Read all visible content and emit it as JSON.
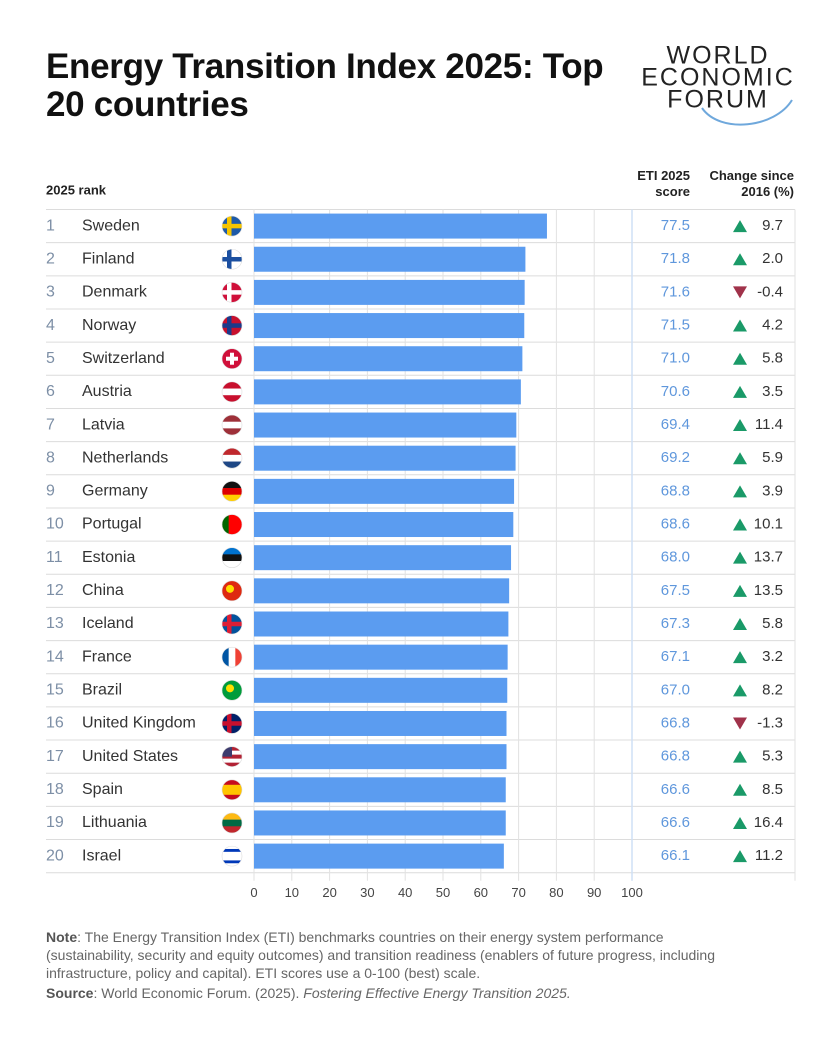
{
  "chart_data": {
    "type": "bar",
    "orientation": "horizontal",
    "title": "Energy Transition Index 2025: Top 20 countries",
    "logo": [
      "WORLD",
      "ECONOMIC",
      "FORUM"
    ],
    "rank_label": "2025 rank",
    "ranks": [
      1,
      2,
      3,
      4,
      5,
      6,
      7,
      8,
      9,
      10,
      11,
      12,
      13,
      14,
      15,
      16,
      17,
      18,
      19,
      20
    ],
    "categories": [
      "Sweden",
      "Finland",
      "Denmark",
      "Norway",
      "Switzerland",
      "Austria",
      "Latvia",
      "Netherlands",
      "Germany",
      "Portugal",
      "Estonia",
      "China",
      "Iceland",
      "France",
      "Brazil",
      "United Kingdom",
      "United States",
      "Spain",
      "Lithuania",
      "Israel"
    ],
    "score": {
      "name": "ETI 2025 score",
      "color": "#5b9cf0",
      "label_color": "#5f97dc",
      "values": [
        77.5,
        71.8,
        71.6,
        71.5,
        71.0,
        70.6,
        69.4,
        69.2,
        68.8,
        68.6,
        68.0,
        67.5,
        67.3,
        67.1,
        67.0,
        66.8,
        66.8,
        66.6,
        66.6,
        66.1
      ],
      "value_labels": [
        "77.5",
        "71.8",
        "71.6",
        "71.5",
        "71.0",
        "70.6",
        "69.4",
        "69.2",
        "68.8",
        "68.6",
        "68.0",
        "67.5",
        "67.3",
        "67.1",
        "67.0",
        "66.8",
        "66.8",
        "66.6",
        "66.6",
        "66.1"
      ]
    },
    "change": {
      "name": "Change since 2016 (%)",
      "up_color": "#1a9a68",
      "down_color": "#a0324a",
      "values": [
        9.7,
        2.0,
        -0.4,
        4.2,
        5.8,
        3.5,
        11.4,
        5.9,
        3.9,
        10.1,
        13.7,
        13.5,
        5.8,
        3.2,
        8.2,
        -1.3,
        5.3,
        8.5,
        16.4,
        11.2
      ],
      "value_labels": [
        "9.7",
        "2.0",
        "-0.4",
        "4.2",
        "5.8",
        "3.5",
        "11.4",
        "5.9",
        "3.9",
        "10.1",
        "13.7",
        "13.5",
        "5.8",
        "3.2",
        "8.2",
        "-1.3",
        "5.3",
        "8.5",
        "16.4",
        "11.2"
      ]
    },
    "xlim": [
      0,
      100
    ],
    "xticks": [
      0,
      10,
      20,
      30,
      40,
      50,
      60,
      70,
      80,
      90,
      100
    ],
    "grid": true,
    "note": {
      "label": "Note",
      "text": ": The Energy Transition Index (ETI) benchmarks countries on their energy system performance (sustainability, security and equity outcomes) and transition readiness (enablers of future progress, including infrastructure, policy and capital). ETI scores use a 0-100 (best) scale."
    },
    "source": {
      "label": "Source",
      "text": ": World Economic Forum. (2025). ",
      "title": "Fostering Effective Energy Transition 2025."
    }
  }
}
